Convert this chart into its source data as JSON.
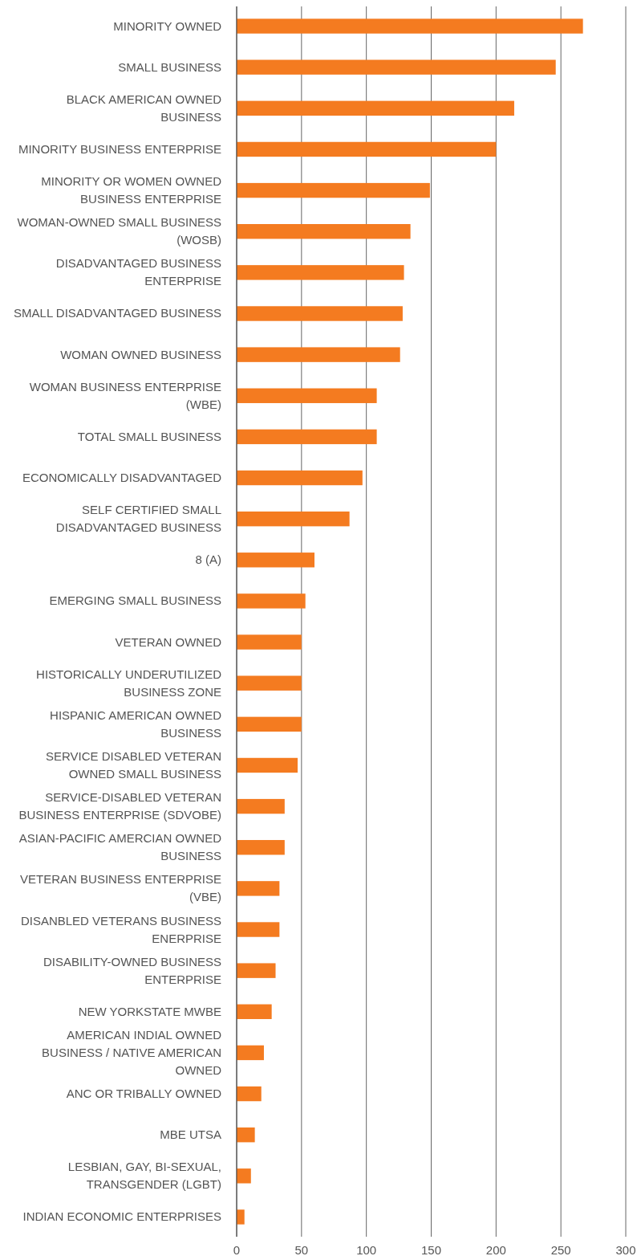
{
  "chart_data": {
    "type": "bar",
    "orientation": "horizontal",
    "color": "#f47b20",
    "categories": [
      "MINORITY OWNED",
      "SMALL BUSINESS",
      "BLACK AMERICAN OWNED BUSINESS",
      "MINORITY BUSINESS ENTERPRISE",
      "MINORITY OR WOMEN OWNED BUSINESS ENTERPRISE",
      "WOMAN-OWNED SMALL BUSINESS (WOSB)",
      "DISADVANTAGED BUSINESS ENTERPRISE",
      "SMALL DISADVANTAGED BUSINESS",
      "WOMAN OWNED BUSINESS",
      "WOMAN BUSINESS ENTERPRISE (WBE)",
      "TOTAL SMALL BUSINESS",
      "ECONOMICALLY DISADVANTAGED",
      "SELF CERTIFIED SMALL DISADVANTAGED BUSINESS",
      "8 (A)",
      "EMERGING SMALL BUSINESS",
      "VETERAN OWNED",
      "HISTORICALLY UNDERUTILIZED BUSINESS ZONE",
      "HISPANIC AMERICAN OWNED BUSINESS",
      "SERVICE DISABLED VETERAN OWNED SMALL BUSINESS",
      "SERVICE-DISABLED VETERAN BUSINESS ENTERPRISE (SDVOBE)",
      "ASIAN-PACIFIC AMERCIAN OWNED BUSINESS",
      "VETERAN BUSINESS ENTERPRISE (VBE)",
      "DISANBLED VETERANS BUSINESS ENERPRISE",
      "DISABILITY-OWNED BUSINESS ENTERPRISE",
      "NEW YORKSTATE MWBE",
      "AMERICAN INDIAL OWNED BUSINESS / NATIVE AMERICAN OWNED",
      "ANC OR TRIBALLY OWNED",
      "MBE UTSA",
      "LESBIAN, GAY, BI-SEXUAL, TRANSGENDER (LGBT)",
      "INDIAN ECONOMIC ENTERPRISES"
    ],
    "values": [
      267,
      246,
      214,
      200,
      149,
      134,
      129,
      128,
      126,
      108,
      108,
      97,
      87,
      60,
      53,
      50,
      50,
      50,
      47,
      37,
      37,
      33,
      33,
      30,
      27,
      21,
      19,
      14,
      11,
      6
    ],
    "xlim": [
      0,
      300
    ],
    "xticks": [
      0,
      50,
      100,
      150,
      200,
      250,
      300
    ],
    "grid": "x"
  }
}
